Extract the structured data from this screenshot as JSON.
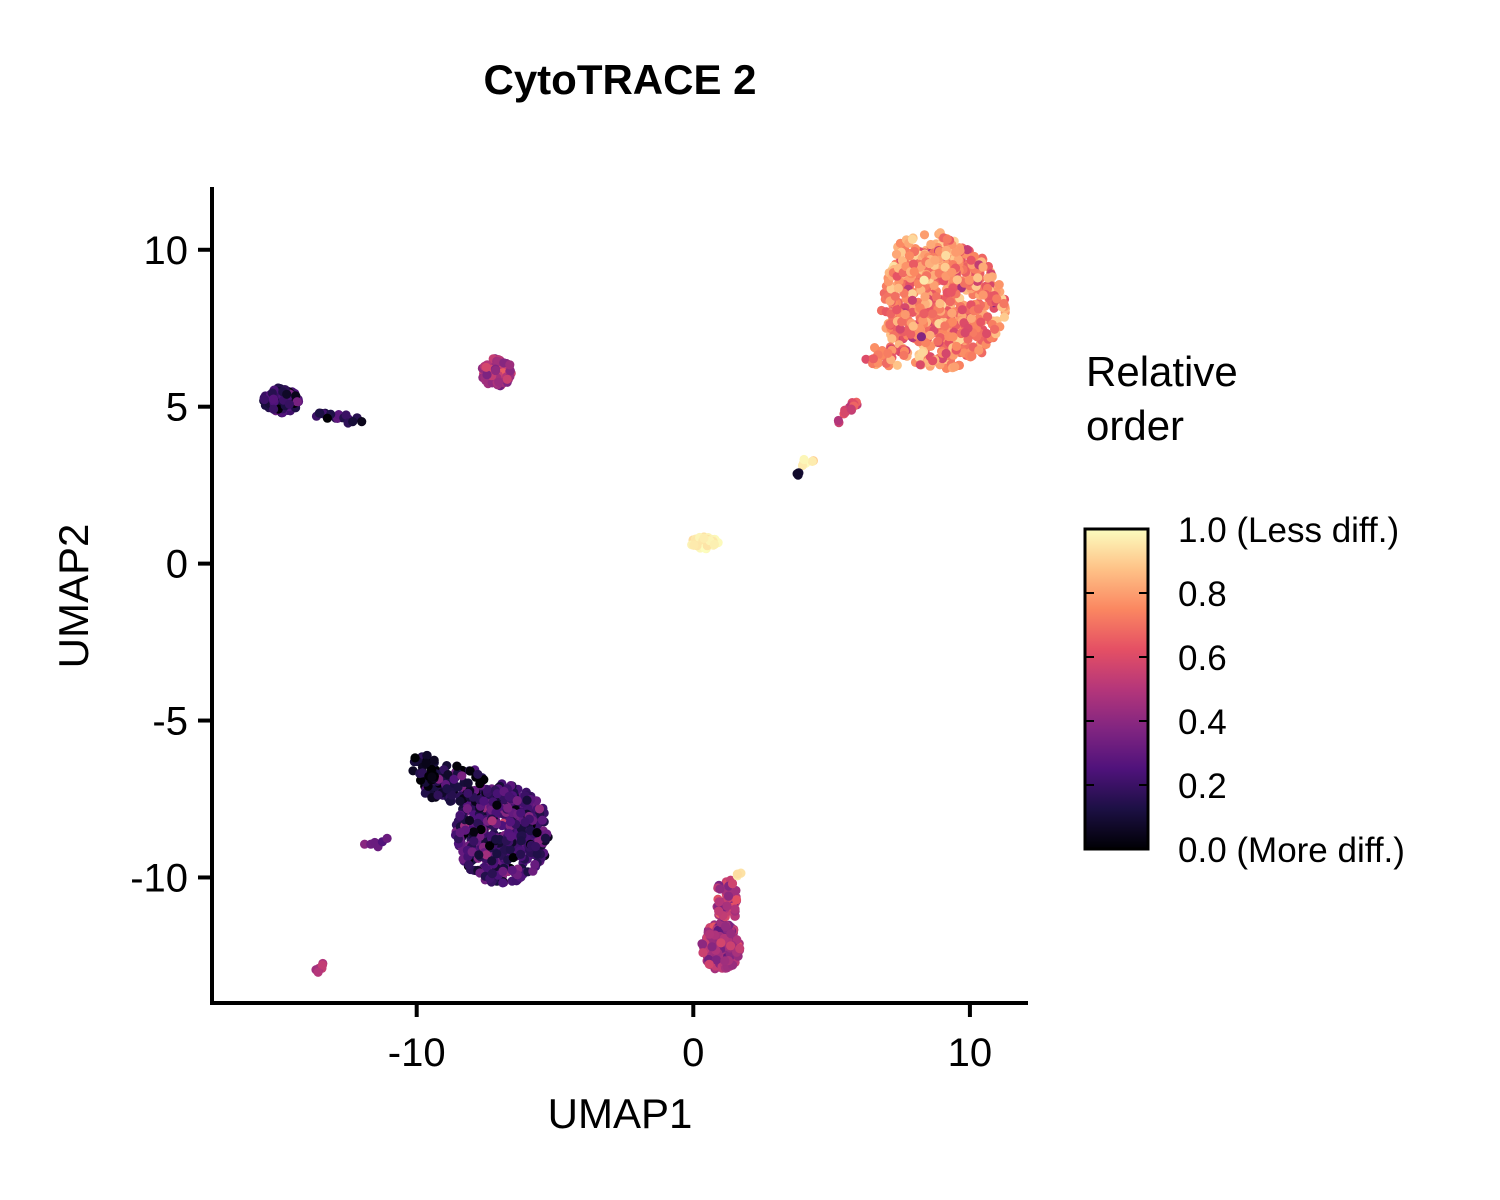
{
  "chart_data": {
    "type": "scatter",
    "title": "CytoTRACE 2",
    "xlabel": "UMAP1",
    "ylabel": "UMAP2",
    "xlim": [
      -17.4,
      12.1
    ],
    "ylim": [
      -14,
      12
    ],
    "x_ticks": [
      -10,
      0,
      10
    ],
    "y_ticks": [
      10,
      5,
      0,
      -5,
      -10
    ],
    "x_tick_labels": [
      "-10",
      "0",
      "10"
    ],
    "y_tick_labels": [
      "10",
      "5",
      "0",
      "-5",
      "-10"
    ],
    "grid": false,
    "color_scale": {
      "name": "magma",
      "title_lines": [
        "Relative",
        "order"
      ],
      "range": [
        0,
        1
      ],
      "ticks": [
        1.0,
        0.8,
        0.6,
        0.4,
        0.2,
        0.0
      ],
      "tick_labels": [
        "1.0 (Less diff.)",
        "0.8",
        "0.6",
        "0.4",
        "0.2",
        "0.0 (More diff.)"
      ],
      "stops": [
        "#000004",
        "#1c1044",
        "#4f127b",
        "#812581",
        "#b5367a",
        "#e55064",
        "#fb8761",
        "#fec287",
        "#fcfdbf"
      ]
    },
    "clusters": [
      {
        "cx": 9.0,
        "cy": 8.2,
        "rx": 2.3,
        "ry": 2.0,
        "count": 650,
        "mean": 0.73,
        "spread": 0.09
      },
      {
        "cx": 8.5,
        "cy": 9.8,
        "rx": 1.2,
        "ry": 0.8,
        "count": 90,
        "mean": 0.78,
        "spread": 0.08
      },
      {
        "cx": 7.0,
        "cy": 6.6,
        "rx": 0.8,
        "ry": 0.35,
        "count": 30,
        "mean": 0.75,
        "spread": 0.08
      },
      {
        "cx": -6.9,
        "cy": -8.6,
        "rx": 1.7,
        "ry": 1.6,
        "count": 520,
        "mean": 0.22,
        "spread": 0.1
      },
      {
        "cx": -8.7,
        "cy": -7.0,
        "rx": 1.2,
        "ry": 0.6,
        "count": 90,
        "mean": 0.12,
        "spread": 0.1
      },
      {
        "cx": -9.7,
        "cy": -6.5,
        "rx": 0.5,
        "ry": 0.5,
        "count": 25,
        "mean": 0.07,
        "spread": 0.06
      },
      {
        "cx": 1.0,
        "cy": -12.2,
        "rx": 0.7,
        "ry": 0.75,
        "count": 220,
        "mean": 0.45,
        "spread": 0.07
      },
      {
        "cx": 1.2,
        "cy": -10.8,
        "rx": 0.4,
        "ry": 0.8,
        "count": 70,
        "mean": 0.5,
        "spread": 0.07
      },
      {
        "cx": -7.1,
        "cy": 6.1,
        "rx": 0.55,
        "ry": 0.45,
        "count": 120,
        "mean": 0.48,
        "spread": 0.06
      },
      {
        "cx": -14.9,
        "cy": 5.2,
        "rx": 0.65,
        "ry": 0.4,
        "count": 110,
        "mean": 0.17,
        "spread": 0.1
      },
      {
        "cx": 0.4,
        "cy": 0.65,
        "rx": 0.5,
        "ry": 0.2,
        "count": 45,
        "mean": 0.97,
        "spread": 0.02
      }
    ],
    "segments": [
      {
        "x1": -13.7,
        "y1": 4.8,
        "x2": -12.1,
        "y2": 4.55,
        "count": 22,
        "mean": 0.2,
        "spread": 0.15
      },
      {
        "x1": 5.2,
        "y1": 4.5,
        "x2": 6.0,
        "y2": 5.3,
        "count": 14,
        "mean": 0.55,
        "spread": 0.05
      },
      {
        "x1": 3.9,
        "y1": 3.1,
        "x2": 4.3,
        "y2": 3.4,
        "count": 6,
        "mean": 0.95,
        "spread": 0.03
      },
      {
        "x1": 3.7,
        "y1": 2.7,
        "x2": 3.8,
        "y2": 2.9,
        "count": 4,
        "mean": 0.05,
        "spread": 0.03
      },
      {
        "x1": -12.0,
        "y1": -9.0,
        "x2": -11.0,
        "y2": -8.8,
        "count": 6,
        "mean": 0.35,
        "spread": 0.1
      },
      {
        "x1": -13.8,
        "y1": -13.1,
        "x2": -13.4,
        "y2": -12.8,
        "count": 7,
        "mean": 0.5,
        "spread": 0.03
      },
      {
        "x1": 1.5,
        "y1": -10.0,
        "x2": 1.7,
        "y2": -9.8,
        "count": 3,
        "mean": 0.95,
        "spread": 0.03
      }
    ]
  }
}
